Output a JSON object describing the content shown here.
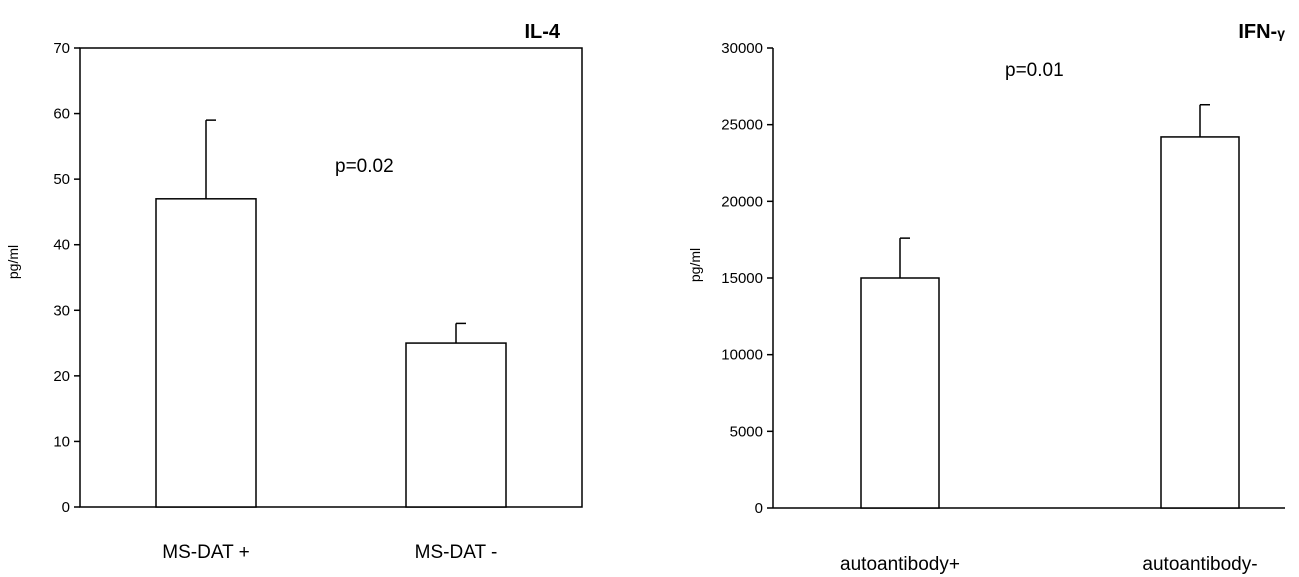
{
  "chart_data": [
    {
      "type": "bar",
      "title": "IL-4",
      "ylabel": "pg/ml",
      "xlabel": "",
      "categories": [
        "MS-DAT +",
        "MS-DAT -"
      ],
      "values": [
        47,
        25
      ],
      "error_upper": [
        59,
        28
      ],
      "ylim": [
        0,
        70
      ],
      "yticks": [
        "0",
        "10",
        "20",
        "30",
        "40",
        "50",
        "60",
        "70"
      ],
      "annotation": "p=0.02",
      "grid": false,
      "legend": "none"
    },
    {
      "type": "bar",
      "title": "IFN-",
      "title_sub": "γ",
      "ylabel": "pg/ml",
      "xlabel": "",
      "categories": [
        "autoantibody+",
        "autoantibody-"
      ],
      "values": [
        15000,
        24200
      ],
      "error_upper": [
        17600,
        26300
      ],
      "ylim": [
        0,
        30000
      ],
      "yticks": [
        "0",
        "5000",
        "10000",
        "15000",
        "20000",
        "25000",
        "30000"
      ],
      "annotation": "p=0.01",
      "grid": false,
      "legend": "none"
    }
  ]
}
